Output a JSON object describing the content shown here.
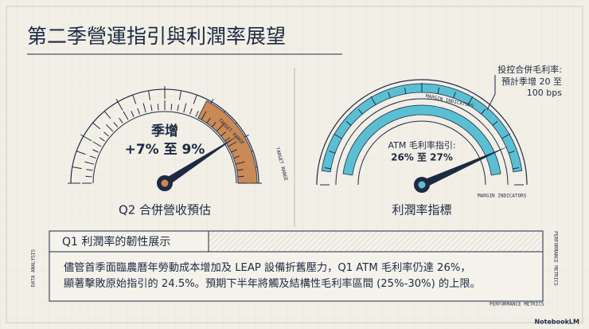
{
  "header": {
    "title": "第二季營運指引與利潤率展望"
  },
  "left_gauge": {
    "label": "季增",
    "value": "+7% 至 9%",
    "arc_label": "TARGET RANGE",
    "side_label": "TARGET RANGE",
    "caption": "Q2 合併營收預估"
  },
  "right_gauge": {
    "label": "ATM 毛利率指引:",
    "value": "26% 至 27%",
    "arc_label": "MARGIN INDICATORS",
    "side_label": "MARGIN INDICATORS",
    "caption": "利潤率指標"
  },
  "callout": {
    "lines": [
      "投控合併毛利率:",
      "預計季增 20 至",
      "100 bps"
    ]
  },
  "panel": {
    "heading": "Q1 利潤率的韌性展示",
    "body": [
      "儘管首季面臨農曆年勞動成本增加及 LEAP 設備折舊壓力，Q1 ATM 毛利率仍達 26%，",
      "顯著擊敗原始指引的 24.5%。預期下半年將觸及結構性毛利率區間 (25%-30%) 的上限。"
    ]
  },
  "margins": {
    "left": "DATA ANALYSIS",
    "right": "PERFORMANCE METRICS",
    "bottom": "PERFORMANCE METRICS"
  },
  "brand": "NotebookLM"
}
